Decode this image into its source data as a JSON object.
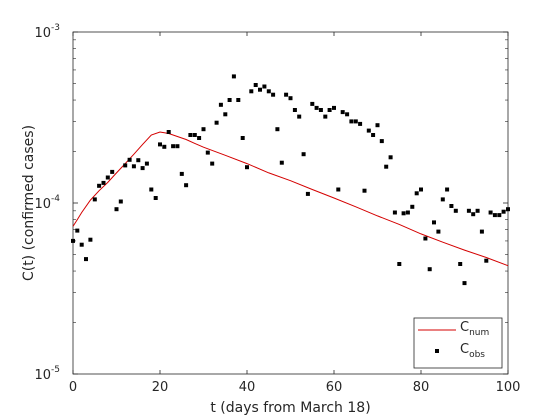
{
  "chart_data": {
    "type": "line",
    "xlabel": "t (days from March 18)",
    "ylabel": "C(t) (confirmed cases)",
    "xlim": [
      0,
      100
    ],
    "ylim": [
      1e-05,
      0.001
    ],
    "yscale": "log",
    "grid": false,
    "legend_position": "bottom-right",
    "x_ticks": [
      "0",
      "20",
      "40",
      "60",
      "80",
      "100"
    ],
    "y_ticks": [
      {
        "value": 1e-05,
        "base": "10",
        "exp": "-5"
      },
      {
        "value": 0.0001,
        "base": "10",
        "exp": "-4"
      },
      {
        "value": 0.001,
        "base": "10",
        "exp": "-3"
      }
    ],
    "colors": {
      "num": "#d40000",
      "obs": "#000000",
      "axis": "#262626"
    },
    "series": [
      {
        "key": "num",
        "legend_base": "C",
        "legend_sub": "num",
        "style": "line",
        "x": [
          0,
          1,
          2,
          4,
          6,
          8,
          10,
          12,
          14,
          16,
          18,
          20,
          22,
          24,
          26,
          28,
          30,
          35,
          40,
          45,
          50,
          55,
          60,
          65,
          70,
          75,
          80,
          85,
          90,
          95,
          100
        ],
        "y": [
          7.3e-05,
          8e-05,
          8.8e-05,
          0.000104,
          0.000118,
          0.000132,
          0.00015,
          0.00017,
          0.000193,
          0.00022,
          0.00025,
          0.00026,
          0.000255,
          0.000245,
          0.000235,
          0.000223,
          0.000212,
          0.00019,
          0.00017,
          0.00015,
          0.000135,
          0.00012,
          0.000107,
          9.5e-05,
          8.4e-05,
          7.5e-05,
          6.6e-05,
          5.9e-05,
          5.3e-05,
          4.8e-05,
          4.3e-05
        ]
      },
      {
        "key": "obs",
        "legend_base": "C",
        "legend_sub": "obs",
        "style": "markers",
        "x": [
          0,
          1,
          2,
          3,
          4,
          5,
          6,
          7,
          8,
          9,
          10,
          11,
          12,
          13,
          14,
          15,
          16,
          17,
          18,
          19,
          20,
          21,
          22,
          23,
          24,
          25,
          26,
          27,
          28,
          29,
          30,
          31,
          32,
          33,
          34,
          35,
          36,
          37,
          38,
          39,
          40,
          41,
          42,
          43,
          44,
          45,
          46,
          47,
          48,
          49,
          50,
          51,
          52,
          53,
          54,
          55,
          56,
          57,
          58,
          59,
          60,
          61,
          62,
          63,
          64,
          65,
          66,
          67,
          68,
          69,
          70,
          71,
          72,
          73,
          74,
          75,
          76,
          77,
          78,
          79,
          80,
          81,
          82,
          83,
          84,
          85,
          86,
          87,
          88,
          89,
          90,
          91,
          92,
          93,
          94,
          95,
          96,
          97,
          98,
          99,
          100
        ],
        "y": [
          6e-05,
          6.9e-05,
          5.7e-05,
          4.7e-05,
          6.1e-05,
          0.000105,
          0.000126,
          0.000131,
          0.000141,
          0.000152,
          9.2e-05,
          0.000102,
          0.000166,
          0.000179,
          0.000164,
          0.000178,
          0.00016,
          0.00017,
          0.00012,
          0.000107,
          0.00022,
          0.000213,
          0.00026,
          0.000215,
          0.000215,
          0.000148,
          0.000127,
          0.00025,
          0.00025,
          0.00024,
          0.00027,
          0.000197,
          0.00017,
          0.000295,
          0.000375,
          0.00033,
          0.0004,
          0.00055,
          0.0004,
          0.00024,
          0.000162,
          0.00045,
          0.00049,
          0.00046,
          0.00048,
          0.00045,
          0.00043,
          0.00027,
          0.000172,
          0.00043,
          0.00041,
          0.00035,
          0.00032,
          0.000193,
          0.000113,
          0.00038,
          0.00036,
          0.00035,
          0.00032,
          0.00035,
          0.00036,
          0.00012,
          0.00034,
          0.00033,
          0.0003,
          0.0003,
          0.00029,
          0.000118,
          0.000265,
          0.00025,
          0.000285,
          0.00023,
          0.000163,
          0.000185,
          8.8e-05,
          4.4e-05,
          8.7e-05,
          8.8e-05,
          9.5e-05,
          0.000114,
          0.00012,
          6.2e-05,
          4.1e-05,
          7.7e-05,
          6.8e-05,
          0.000105,
          0.00012,
          9.6e-05,
          9e-05,
          4.4e-05,
          3.4e-05,
          9e-05,
          8.6e-05,
          9e-05,
          6.8e-05,
          4.6e-05,
          8.8e-05,
          8.5e-05,
          8.5e-05,
          8.9e-05,
          9.2e-05
        ]
      }
    ]
  }
}
